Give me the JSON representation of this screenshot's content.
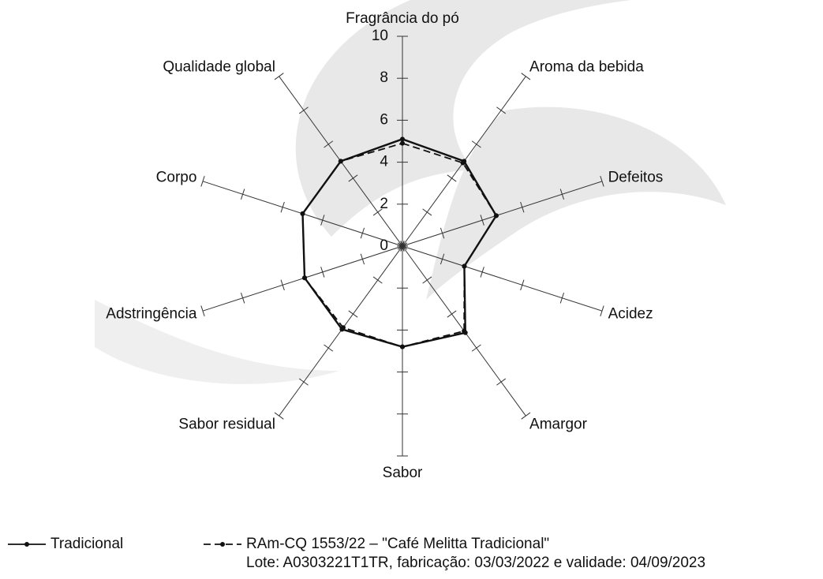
{
  "chart_data": {
    "type": "radar",
    "categories": [
      "Fragrância do pó",
      "Aroma da bebida",
      "Defeitos",
      "Acidez",
      "Amargor",
      "Sabor",
      "Sabor residual",
      "Adstringência",
      "Corpo",
      "Qualidade global"
    ],
    "rlim": [
      0,
      10
    ],
    "rticks": [
      0,
      2,
      4,
      6,
      8,
      10
    ],
    "series": [
      {
        "name": "Tradicional",
        "color": "#111111",
        "dash": false,
        "values": [
          5.1,
          5.0,
          4.7,
          3.1,
          5.1,
          4.8,
          4.9,
          4.9,
          5.0,
          5.0
        ]
      },
      {
        "name": "RAm-CQ 1553/22  – \"Café Melitta Tradicional\"",
        "note": "Lote: A0303221T1TR, fabricação: 03/03/2022 e validade: 04/09/2023",
        "color": "#111111",
        "dash": true,
        "values": [
          4.9,
          4.9,
          4.7,
          3.1,
          5.0,
          4.8,
          4.8,
          4.9,
          5.0,
          5.0
        ]
      }
    ]
  }
}
